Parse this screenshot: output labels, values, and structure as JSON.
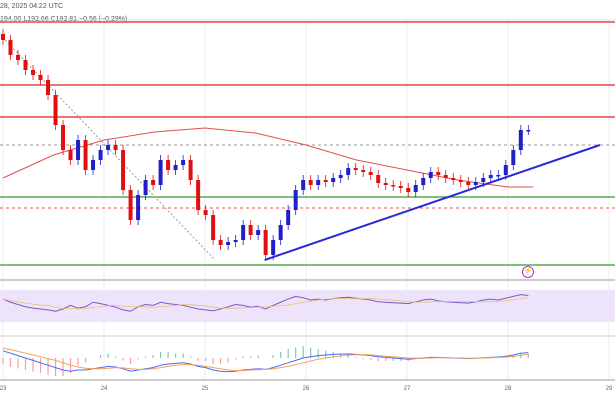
{
  "header": {
    "datetime": "28, 2025 04:22 UTC",
    "ohlc": "194.00  L192.66  C192.81  −0.56 (−0.29%)"
  },
  "colors": {
    "up": "#2020c8",
    "down": "#e01010",
    "ma": "#e05050",
    "trend": "#2a2ad8",
    "support": "#2e9a2e",
    "resistance": "#e02020",
    "rsi": "#7b58c8",
    "rsi_band": "#ede4fb",
    "macd": "#4a6cf0",
    "signal": "#f5a25a"
  },
  "chart_data": {
    "type": "candlestick",
    "x_tick_labels": [
      "23",
      "24",
      "25",
      "26",
      "27",
      "28",
      "29"
    ],
    "x_range_days": [
      23,
      29
    ],
    "candle_start_day": 23,
    "candle_step_days": 0.0743,
    "closes": [
      197.31,
      196.56,
      196.31,
      195.81,
      195.56,
      195.31,
      194.56,
      193.06,
      191.81,
      191.31,
      192.31,
      190.81,
      191.31,
      191.81,
      192.06,
      191.81,
      189.81,
      188.31,
      189.56,
      190.31,
      190.06,
      191.31,
      190.81,
      191.06,
      191.31,
      190.31,
      188.81,
      188.56,
      187.31,
      187.06,
      187.21,
      187.31,
      188.06,
      187.56,
      187.81,
      186.56,
      187.31,
      188.06,
      188.81,
      189.81,
      190.31,
      190.06,
      190.31,
      190.21,
      190.41,
      190.56,
      190.91,
      190.81,
      190.71,
      190.56,
      190.16,
      190.06,
      190.01,
      189.91,
      189.71,
      190.06,
      190.41,
      190.71,
      190.56,
      190.41,
      190.31,
      190.21,
      190.06,
      190.21,
      190.41,
      190.56,
      190.56,
      191.06,
      191.81,
      192.81,
      192.81
    ],
    "horizontal_levels": [
      {
        "price": 198.21,
        "type": "resistance"
      },
      {
        "price": 195.06,
        "type": "resistance"
      },
      {
        "price": 193.46,
        "type": "resistance"
      },
      {
        "price": 192.06,
        "type": "dashed-gray"
      },
      {
        "price": 189.46,
        "type": "support"
      },
      {
        "price": 188.91,
        "type": "dashed-red"
      },
      {
        "price": 186.06,
        "type": "support"
      }
    ],
    "trendline": [
      [
        25.59,
        186.31
      ],
      [
        28.91,
        192.06
      ]
    ],
    "dotted_line": [
      [
        23.02,
        197.31
      ],
      [
        25.1,
        186.31
      ]
    ],
    "moving_average": [
      [
        23,
        190.41
      ],
      [
        23.5,
        191.56
      ],
      [
        24,
        192.31
      ],
      [
        24.5,
        192.71
      ],
      [
        25,
        192.91
      ],
      [
        25.5,
        192.66
      ],
      [
        26,
        192.06
      ],
      [
        26.5,
        191.31
      ],
      [
        27,
        190.81
      ],
      [
        27.5,
        190.31
      ],
      [
        28,
        189.96
      ],
      [
        28.25,
        189.96
      ]
    ],
    "rsi": [
      62,
      55,
      50,
      45,
      42,
      40,
      38,
      35,
      40,
      48,
      42,
      45,
      55,
      52,
      48,
      44,
      38,
      35,
      45,
      50,
      48,
      55,
      52,
      50,
      48,
      44,
      40,
      38,
      36,
      40,
      45,
      50,
      48,
      44,
      46,
      40,
      48,
      55,
      62,
      68,
      65,
      60,
      62,
      60,
      63,
      65,
      66,
      64,
      62,
      60,
      56,
      55,
      54,
      53,
      52,
      56,
      60,
      62,
      58,
      56,
      55,
      54,
      53,
      56,
      60,
      62,
      60,
      64,
      68,
      72,
      70
    ],
    "rsi_band": [
      30,
      70
    ],
    "macd": [
      0.6,
      0.4,
      0.2,
      0.0,
      -0.2,
      -0.4,
      -0.6,
      -0.8,
      -1.0,
      -1.1,
      -1.0,
      -1.0,
      -0.9,
      -0.8,
      -0.7,
      -0.75,
      -0.9,
      -1.1,
      -1.0,
      -0.9,
      -0.8,
      -0.6,
      -0.5,
      -0.45,
      -0.4,
      -0.5,
      -0.7,
      -0.8,
      -1.0,
      -1.1,
      -1.15,
      -1.1,
      -1.0,
      -0.95,
      -0.9,
      -0.95,
      -0.8,
      -0.6,
      -0.4,
      -0.2,
      0.0,
      0.1,
      0.2,
      0.25,
      0.3,
      0.32,
      0.34,
      0.3,
      0.25,
      0.2,
      0.1,
      0.05,
      0.0,
      -0.05,
      -0.1,
      -0.05,
      0.0,
      0.05,
      0.05,
      0.03,
      0.0,
      -0.02,
      -0.05,
      -0.02,
      0.02,
      0.05,
      0.08,
      0.15,
      0.25,
      0.4,
      0.45
    ],
    "signal": [
      0.8,
      0.7,
      0.55,
      0.4,
      0.25,
      0.1,
      -0.05,
      -0.2,
      -0.4,
      -0.6,
      -0.75,
      -0.85,
      -0.9,
      -0.9,
      -0.85,
      -0.8,
      -0.82,
      -0.9,
      -0.95,
      -0.95,
      -0.9,
      -0.8,
      -0.7,
      -0.6,
      -0.55,
      -0.55,
      -0.6,
      -0.7,
      -0.8,
      -0.9,
      -1.0,
      -1.05,
      -1.05,
      -1.0,
      -0.98,
      -0.95,
      -0.9,
      -0.8,
      -0.7,
      -0.55,
      -0.4,
      -0.25,
      -0.1,
      0.0,
      0.1,
      0.18,
      0.24,
      0.27,
      0.28,
      0.26,
      0.2,
      0.15,
      0.1,
      0.05,
      0.0,
      -0.02,
      -0.02,
      0.0,
      0.02,
      0.02,
      0.01,
      0.0,
      -0.02,
      -0.02,
      0.0,
      0.02,
      0.04,
      0.08,
      0.14,
      0.22,
      0.3
    ]
  }
}
